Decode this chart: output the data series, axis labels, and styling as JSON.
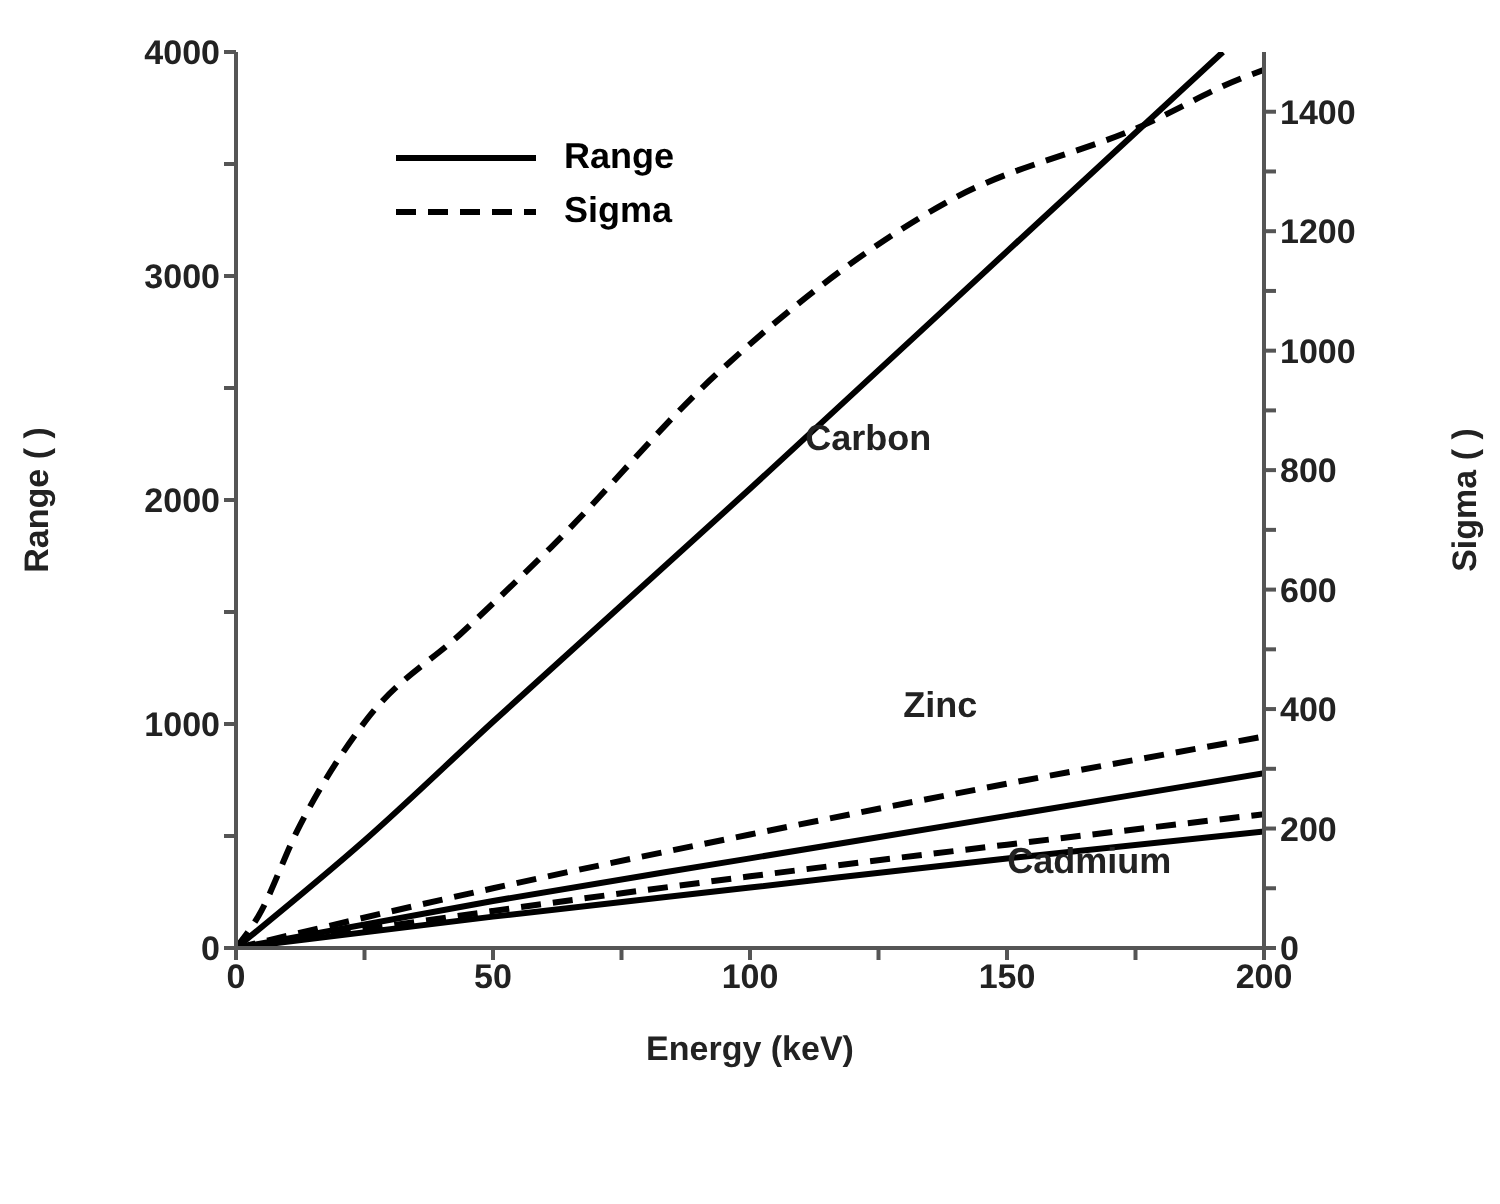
{
  "chart_data": {
    "type": "line",
    "xlabel": "Energy (keV)",
    "ylabel": "Range ( )",
    "y2label": "Sigma ( )",
    "xlim": [
      0,
      200
    ],
    "xticks": [
      0,
      {
        "value": 25,
        "label": null
      },
      50,
      {
        "value": 75,
        "label": null
      },
      100,
      {
        "value": 125,
        "label": null
      },
      150,
      {
        "value": 175,
        "label": null
      },
      200
    ],
    "ylim": [
      0,
      4000
    ],
    "yticks": [
      0,
      {
        "value": 500,
        "label": null
      },
      1000,
      {
        "value": 1500,
        "label": null
      },
      2000,
      {
        "value": 2500,
        "label": null
      },
      3000,
      {
        "value": 3500,
        "label": null
      },
      4000
    ],
    "y2lim": [
      0,
      1500
    ],
    "y2ticks": [
      0,
      {
        "value": 100,
        "label": null
      },
      200,
      {
        "value": 300,
        "label": null
      },
      400,
      {
        "value": 500,
        "label": null
      },
      600,
      {
        "value": 700,
        "label": null
      },
      800,
      {
        "value": 900,
        "label": null
      },
      1000,
      {
        "value": 1100,
        "label": null
      },
      1200,
      {
        "value": 1300,
        "label": null
      },
      1400
    ],
    "legend": "top left",
    "marker": "none",
    "series": [
      {
        "name": "Range",
        "color": "#000000",
        "line_style": "solid",
        "x": [
          0,
          25,
          50,
          100,
          150,
          192
        ],
        "values": [
          0,
          480,
          1010,
          2050,
          3110,
          4000
        ]
      },
      {
        "name": "Sigma",
        "color": "#000000",
        "line_style": "dashed",
        "axis": "y2",
        "x": [
          0,
          4.4,
          11.9,
          25.2,
          44.1,
          61.2,
          93.4,
          138.8,
          176.7,
          195.6,
          200
        ],
        "values": [
          0,
          54,
          196,
          380,
          529,
          670,
          960,
          1251,
          1378,
          1456,
          1470
        ]
      },
      {
        "color": "#000000",
        "line_style": "solid",
        "x": [
          0,
          50,
          100,
          150,
          200
        ],
        "values": [
          0,
          210,
          400,
          590,
          780
        ]
      },
      {
        "color": "#000000",
        "line_style": "dashed",
        "axis": "y2",
        "x": [
          0,
          50,
          100,
          150,
          200
        ],
        "values": [
          0,
          100,
          190,
          275,
          354
        ]
      },
      {
        "color": "#000000",
        "line_style": "solid",
        "x": [
          0,
          50,
          100,
          150,
          200
        ],
        "values": [
          0,
          140,
          270,
          400,
          520
        ]
      },
      {
        "color": "#000000",
        "line_style": "dashed",
        "axis": "y2",
        "x": [
          0,
          50,
          100,
          150,
          200
        ],
        "values": [
          0,
          62,
          120,
          173,
          224
        ]
      }
    ],
    "annotations": [
      "Carbon",
      "Zinc",
      "Cadmium"
    ]
  }
}
